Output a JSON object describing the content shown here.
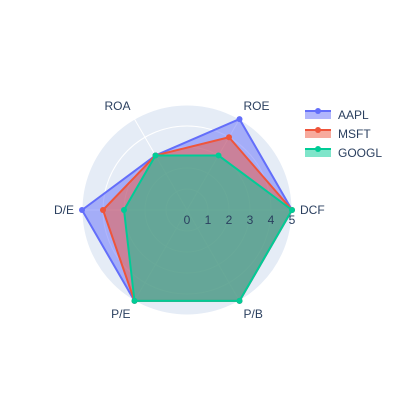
{
  "chart_data": {
    "type": "radar",
    "axes": [
      "DCF",
      "ROE",
      "ROA",
      "D/E",
      "P/E",
      "P/B"
    ],
    "radial_range": [
      0,
      5
    ],
    "radial_ticks": [
      "0",
      "1",
      "2",
      "3",
      "4",
      "5"
    ],
    "grid": true,
    "legend_position": "top-right",
    "series": [
      {
        "name": "AAPL",
        "values": [
          5,
          5,
          3,
          5,
          5,
          5
        ],
        "color": "#636efa"
      },
      {
        "name": "MSFT",
        "values": [
          5,
          4,
          3,
          4,
          5,
          5
        ],
        "color": "#ef553b"
      },
      {
        "name": "GOOGL",
        "values": [
          5,
          3,
          3,
          3,
          5,
          5
        ],
        "color": "#00cc96"
      }
    ]
  },
  "colors": {
    "polar_background": "#e5ecf6",
    "grid_line": "#ffffff",
    "text": "#2a3f5f"
  }
}
